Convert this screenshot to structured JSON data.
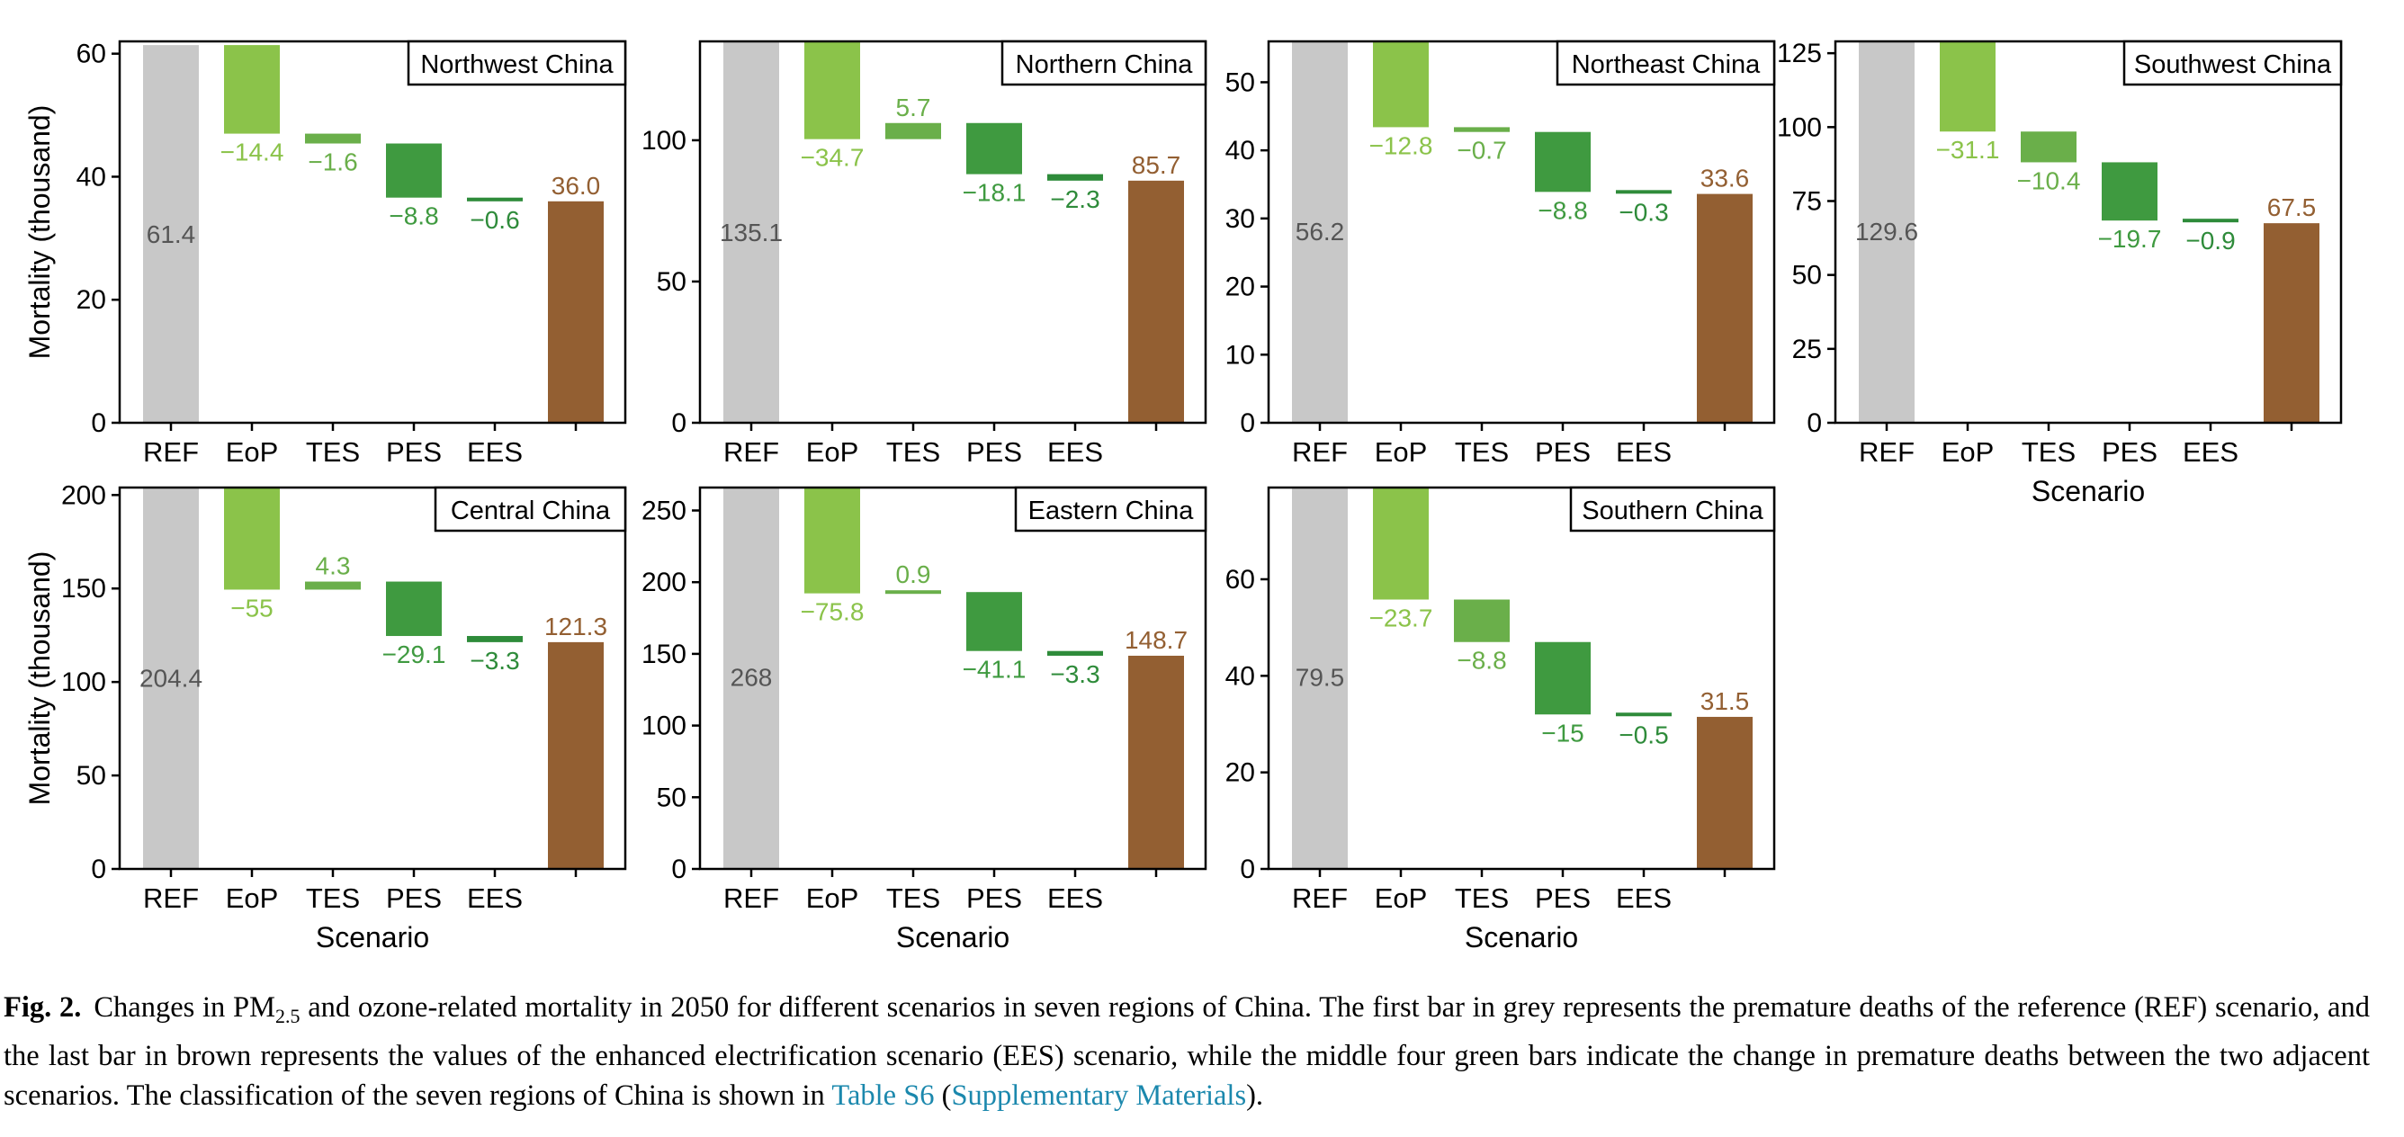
{
  "chart_data": [
    {
      "type": "bar",
      "title": "Northwest China",
      "ylabel": "Mortality (thousand)",
      "xlabel": "",
      "categories": [
        "REF",
        "EoP",
        "TES",
        "PES",
        "EES"
      ],
      "ref": 61.4,
      "deltas": [
        -14.4,
        -1.6,
        -8.8,
        -0.6
      ],
      "ees": 36.0,
      "labels": [
        "61.4",
        "−14.4",
        "−1.6",
        "−8.8",
        "−0.6",
        "36.0"
      ],
      "ylim": [
        0,
        62
      ],
      "yticks": [
        0,
        20,
        40,
        60
      ]
    },
    {
      "type": "bar",
      "title": "Northern China",
      "ylabel": "",
      "xlabel": "",
      "categories": [
        "REF",
        "EoP",
        "TES",
        "PES",
        "EES"
      ],
      "ref": 135.1,
      "deltas": [
        -34.7,
        5.7,
        -18.1,
        -2.3
      ],
      "ees": 85.7,
      "labels": [
        "135.1",
        "−34.7",
        "5.7",
        "−18.1",
        "−2.3",
        "85.7"
      ],
      "ylim": [
        0,
        135
      ],
      "yticks": [
        0,
        50,
        100
      ]
    },
    {
      "type": "bar",
      "title": "Northeast China",
      "ylabel": "",
      "xlabel": "",
      "categories": [
        "REF",
        "EoP",
        "TES",
        "PES",
        "EES"
      ],
      "ref": 56.2,
      "deltas": [
        -12.8,
        -0.7,
        -8.8,
        -0.3
      ],
      "ees": 33.6,
      "labels": [
        "56.2",
        "−12.8",
        "−0.7",
        "−8.8",
        "−0.3",
        "33.6"
      ],
      "ylim": [
        0,
        56
      ],
      "yticks": [
        0,
        10,
        20,
        30,
        40,
        50
      ]
    },
    {
      "type": "bar",
      "title": "Southwest China",
      "ylabel": "",
      "xlabel": "Scenario",
      "categories": [
        "REF",
        "EoP",
        "TES",
        "PES",
        "EES"
      ],
      "ref": 129.6,
      "deltas": [
        -31.1,
        -10.4,
        -19.7,
        -0.9
      ],
      "ees": 67.5,
      "labels": [
        "129.6",
        "−31.1",
        "−10.4",
        "−19.7",
        "−0.9",
        "67.5"
      ],
      "ylim": [
        0,
        129
      ],
      "yticks": [
        0,
        25,
        50,
        75,
        100,
        125
      ]
    },
    {
      "type": "bar",
      "title": "Central China",
      "ylabel": "Mortality (thousand)",
      "xlabel": "Scenario",
      "categories": [
        "REF",
        "EoP",
        "TES",
        "PES",
        "EES"
      ],
      "ref": 204.4,
      "deltas": [
        -55,
        4.3,
        -29.1,
        -3.3
      ],
      "ees": 121.3,
      "labels": [
        "204.4",
        "−55",
        "4.3",
        "−29.1",
        "−3.3",
        "121.3"
      ],
      "ylim": [
        0,
        204
      ],
      "yticks": [
        0,
        50,
        100,
        150,
        200
      ]
    },
    {
      "type": "bar",
      "title": "Eastern China",
      "ylabel": "",
      "xlabel": "Scenario",
      "categories": [
        "REF",
        "EoP",
        "TES",
        "PES",
        "EES"
      ],
      "ref": 268,
      "deltas": [
        -75.8,
        0.9,
        -41.1,
        -3.3
      ],
      "ees": 148.7,
      "labels": [
        "268",
        "−75.8",
        "0.9",
        "−41.1",
        "−3.3",
        "148.7"
      ],
      "ylim": [
        0,
        266
      ],
      "yticks": [
        0,
        50,
        100,
        150,
        200,
        250
      ]
    },
    {
      "type": "bar",
      "title": "Southern China",
      "ylabel": "",
      "xlabel": "Scenario",
      "categories": [
        "REF",
        "EoP",
        "TES",
        "PES",
        "EES"
      ],
      "ref": 79.5,
      "deltas": [
        -23.7,
        -8.8,
        -15,
        -0.5
      ],
      "ees": 31.5,
      "labels": [
        "79.5",
        "−23.7",
        "−8.8",
        "−15",
        "−0.5",
        "31.5"
      ],
      "ylim": [
        0,
        79
      ],
      "yticks": [
        0,
        20,
        40,
        60
      ]
    }
  ],
  "colors": {
    "ref": "#c8c8c8",
    "ref_label": "#555555",
    "green": [
      "#8bc34a",
      "#6aaf4a",
      "#3f9a40",
      "#2e8b3a"
    ],
    "ees": "#935f32",
    "link": "#1b88ad"
  },
  "caption": {
    "label": "Fig. 2.",
    "t1": "Changes in PM",
    "sub": "2.5",
    "t2": " and ozone-related mortality in 2050 for different scenarios in seven regions of China. The first bar in grey represents the premature deaths of the reference (REF) scenario, and the last bar in brown represents the values of the enhanced electrification scenario (EES) scenario, while the middle four green bars indicate the change in premature deaths between the two adjacent scenarios. The classification of the seven regions of China is shown in ",
    "link1": "Table S6",
    "t3": " (",
    "link2": "Supplementary Materials",
    "t4": ")."
  }
}
